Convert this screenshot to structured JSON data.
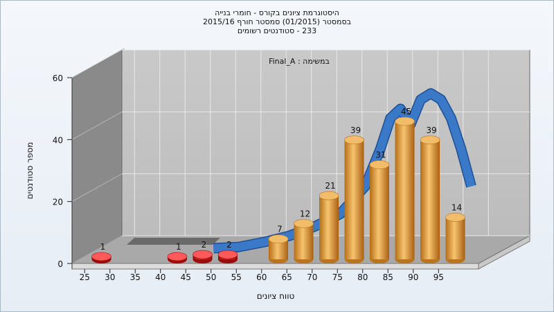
{
  "chart_data": {
    "type": "bar",
    "title_lines": [
      "היסטוגרמת ציונים בקורס - חומרי בנייה",
      "בסמסטר  (01/2015)  סמסטר חורף 2015/16",
      "233 - סטודנטים רשומים"
    ],
    "task_label": "Final_A : במשימה",
    "xlabel": "טווח ציונים",
    "ylabel": "מספר סטודנטים",
    "x_ticks": [
      "25",
      "30",
      "35",
      "40",
      "45",
      "50",
      "55",
      "60",
      "65",
      "70",
      "75",
      "80",
      "85",
      "90",
      "95"
    ],
    "y_ticks": [
      "0",
      "20",
      "40",
      "60"
    ],
    "ylim": [
      0,
      60
    ],
    "grid": true,
    "bars": [
      {
        "x": 27.5,
        "value": 1,
        "label": "1",
        "color": "#dd1111"
      },
      {
        "x": 42.5,
        "value": 1,
        "label": "1",
        "color": "#dd1111"
      },
      {
        "x": 47.5,
        "value": 2,
        "label": "2",
        "color": "#dd1111"
      },
      {
        "x": 52.5,
        "value": 2,
        "label": "2",
        "color": "#dd1111"
      },
      {
        "x": 62.5,
        "value": 7,
        "label": "7",
        "color": "#e8a040"
      },
      {
        "x": 67.5,
        "value": 12,
        "label": "12",
        "color": "#e8a040"
      },
      {
        "x": 72.5,
        "value": 21,
        "label": "21",
        "color": "#e8a040"
      },
      {
        "x": 77.5,
        "value": 39,
        "label": "39",
        "color": "#e8a040"
      },
      {
        "x": 82.5,
        "value": 31,
        "label": "31",
        "color": "#e8a040"
      },
      {
        "x": 87.5,
        "value": 45,
        "label": "45",
        "color": "#e8a040"
      },
      {
        "x": 92.5,
        "value": 39,
        "label": "39",
        "color": "#e8a040"
      },
      {
        "x": 97.5,
        "value": 14,
        "label": "14",
        "color": "#e8a040"
      }
    ],
    "curve": {
      "color": "#3a78c8",
      "points": [
        [
          45,
          0
        ],
        [
          50,
          0.4
        ],
        [
          55,
          2
        ],
        [
          60,
          4
        ],
        [
          65,
          7
        ],
        [
          70,
          11
        ],
        [
          75,
          20
        ],
        [
          78,
          32
        ],
        [
          80,
          42
        ],
        [
          82,
          45
        ],
        [
          84,
          40
        ],
        [
          86,
          48
        ],
        [
          88,
          50
        ],
        [
          90,
          48
        ],
        [
          92,
          42
        ],
        [
          94,
          32
        ],
        [
          96,
          20
        ]
      ]
    },
    "colors": {
      "wall_left": "#8a8a8a",
      "wall_back": "#c4c4c4",
      "floor": "#a9a9a9",
      "gridline": "#e8e8e8"
    }
  }
}
